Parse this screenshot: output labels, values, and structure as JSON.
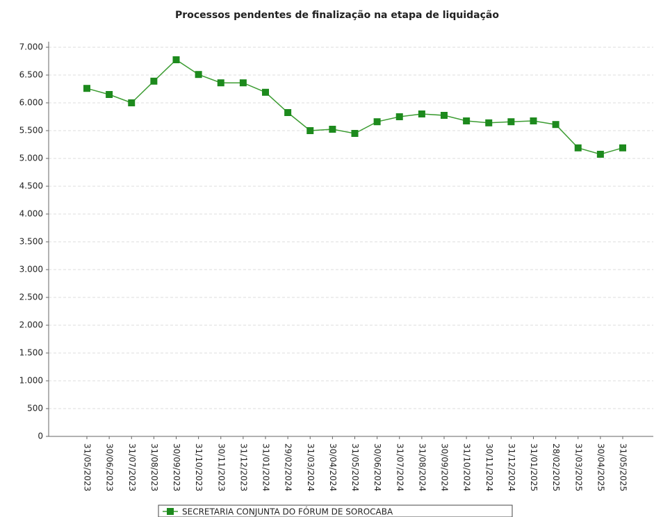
{
  "chart_data": {
    "type": "line",
    "title": "Processos pendentes de finalização na etapa de liquidação",
    "categories": [
      "31/05/2023",
      "30/06/2023",
      "31/07/2023",
      "31/08/2023",
      "30/09/2023",
      "31/10/2023",
      "30/11/2023",
      "31/12/2023",
      "31/01/2024",
      "29/02/2024",
      "31/03/2024",
      "30/04/2024",
      "31/05/2024",
      "30/06/2024",
      "31/07/2024",
      "31/08/2024",
      "30/09/2024",
      "31/10/2024",
      "30/11/2024",
      "31/12/2024",
      "31/01/2025",
      "28/02/2025",
      "31/03/2025",
      "30/04/2025",
      "31/05/2025"
    ],
    "series": [
      {
        "name": "SECRETARIA CONJUNTA DO FÓRUM DE SOROCABA",
        "color": "#3c9c32",
        "values": [
          6260,
          6150,
          6000,
          6390,
          6775,
          6510,
          6360,
          6360,
          6190,
          5825,
          5500,
          5525,
          5450,
          5660,
          5750,
          5800,
          5775,
          5675,
          5640,
          5660,
          5675,
          5610,
          5190,
          5075,
          5190
        ]
      }
    ],
    "ylim": [
      0,
      7000
    ],
    "yticks": [
      0,
      500,
      {
        "value": 1000,
        "label": "1.000"
      },
      {
        "value": 1500,
        "label": "1.500"
      },
      {
        "value": 2000,
        "label": "2.000"
      },
      {
        "value": 2500,
        "label": "2.500"
      },
      {
        "value": 3000,
        "label": "3.000"
      },
      {
        "value": 3500,
        "label": "3.500"
      },
      {
        "value": 4000,
        "label": "4.000"
      },
      {
        "value": 4500,
        "label": "4.500"
      },
      {
        "value": 5000,
        "label": "5.000"
      },
      {
        "value": 5500,
        "label": "5.500"
      },
      {
        "value": 6000,
        "label": "6.000"
      },
      {
        "value": 6500,
        "label": "6.500"
      },
      {
        "value": 7000,
        "label": "7.000"
      }
    ],
    "grid": true,
    "legend": "bottom"
  }
}
